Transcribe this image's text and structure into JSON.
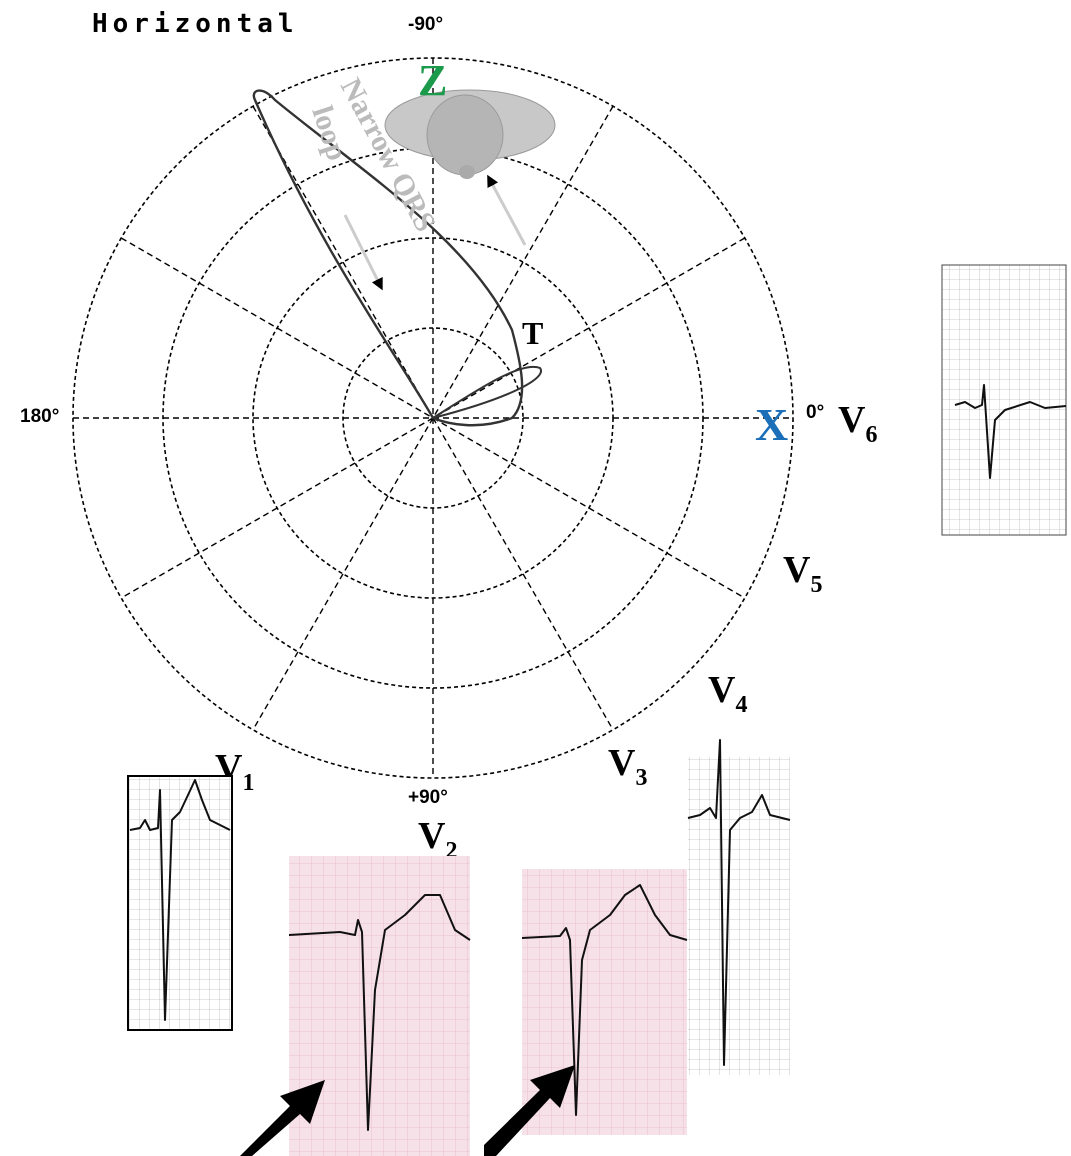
{
  "title": "Horizontal",
  "angles": {
    "top": "-90°",
    "left": "180°",
    "right": "0°",
    "bottom": "+90°"
  },
  "axes": {
    "x": "X",
    "z": "Z"
  },
  "loop_labels": {
    "t": "T",
    "qrs_1": "Narrow QRS",
    "qrs_2": "loop"
  },
  "leads": [
    {
      "letter": "V",
      "sub": "1"
    },
    {
      "letter": "V",
      "sub": "2"
    },
    {
      "letter": "V",
      "sub": "3"
    },
    {
      "letter": "V",
      "sub": "4"
    },
    {
      "letter": "V",
      "sub": "5"
    },
    {
      "letter": "V",
      "sub": "6"
    }
  ]
}
